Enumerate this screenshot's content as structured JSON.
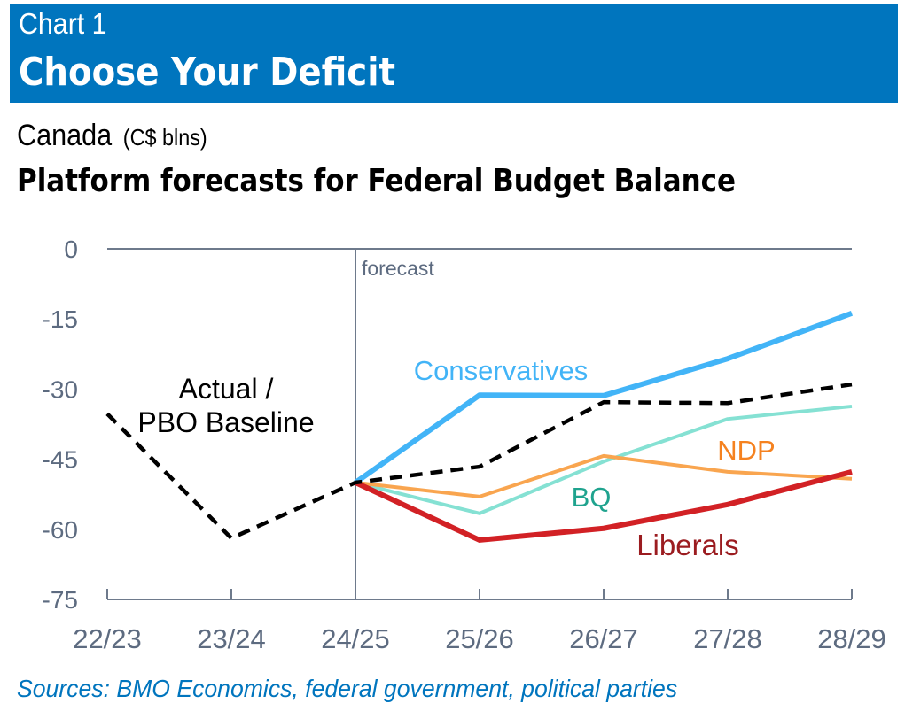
{
  "header": {
    "chart_number": "Chart 1",
    "title": "Choose Your Deficit"
  },
  "region": "Canada",
  "units": "(C$ blns)",
  "subtitle": "Platform forecasts for Federal Budget Balance",
  "source": "Sources: BMO Economics, federal government, political parties",
  "colors": {
    "header_bg": "#0075BE",
    "baseline": "#000000",
    "conservatives": "#42B4F7",
    "ndp": "#F9A54F",
    "bq": "#85E1D3",
    "liberals": "#D22125",
    "axis": "#6E7A8C"
  },
  "chart_data": {
    "type": "line",
    "title": "Platform forecasts for Federal Budget Balance",
    "xlabel": "",
    "ylabel": "C$ blns",
    "categories": [
      "22/23",
      "23/24",
      "24/25",
      "25/26",
      "26/27",
      "27/28",
      "28/29"
    ],
    "ylim": [
      -75,
      0
    ],
    "yticks": [
      0,
      -15,
      -30,
      -45,
      -60,
      -75
    ],
    "grid": false,
    "annotations": [
      {
        "text": "forecast",
        "at": "24/25",
        "kind": "vertical-divider"
      }
    ],
    "series": [
      {
        "name": "Actual / PBO Baseline",
        "label_lines": [
          "Actual /",
          "PBO Baseline"
        ],
        "style": "dashed",
        "color": "#000000",
        "label_color": "#000000",
        "values": [
          -35.3,
          -61.9,
          -50.0,
          -46.6,
          -32.8,
          -33.0,
          -29.0
        ]
      },
      {
        "name": "Conservatives",
        "style": "solid",
        "color": "#42B4F7",
        "label_color": "#42B4F7",
        "values": [
          null,
          null,
          -50.0,
          -31.3,
          -31.4,
          -23.5,
          -13.8
        ]
      },
      {
        "name": "NDP",
        "style": "solid",
        "color": "#F9A54F",
        "label_color": "#F58220",
        "values": [
          null,
          null,
          -50.0,
          -53.0,
          -44.3,
          -47.7,
          -49.2
        ]
      },
      {
        "name": "BQ",
        "style": "solid",
        "color": "#85E1D3",
        "label_color": "#1FA38E",
        "values": [
          null,
          null,
          -50.0,
          -56.6,
          -45.5,
          -36.4,
          -33.7
        ]
      },
      {
        "name": "Liberals",
        "style": "solid",
        "color": "#D22125",
        "label_color": "#9B1C20",
        "values": [
          null,
          null,
          -50.0,
          -62.3,
          -59.8,
          -54.7,
          -47.7
        ]
      }
    ]
  }
}
